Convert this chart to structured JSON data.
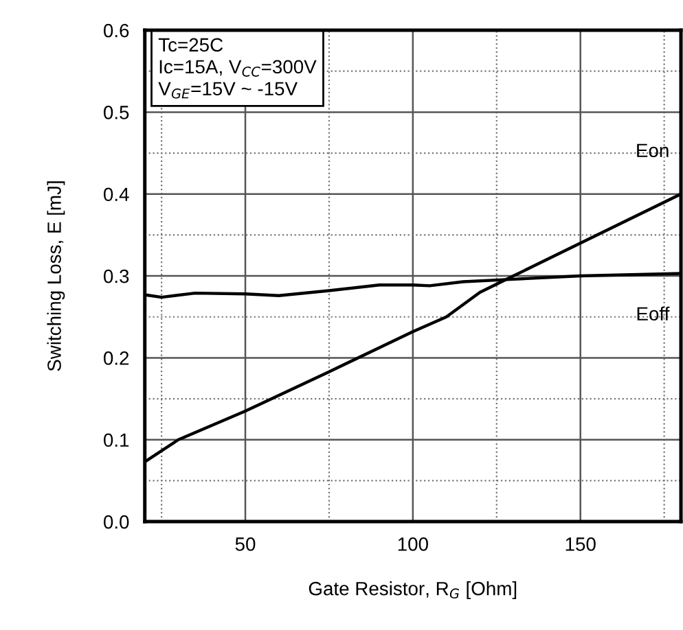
{
  "chart_data": {
    "type": "line",
    "xlabel": "Gate Resistor, R$_{G}$ [Ohm]",
    "ylabel": "Switching Loss, E [mJ]",
    "xlim": [
      20,
      180
    ],
    "ylim": [
      0,
      0.6
    ],
    "xticks": [
      {
        "value": 25,
        "label": null
      },
      50,
      {
        "value": 75,
        "label": null
      },
      100,
      {
        "value": 125,
        "label": null
      },
      150,
      {
        "value": 175,
        "label": null
      }
    ],
    "yticks": [
      "0.0",
      {
        "value": 0.05,
        "label": null
      },
      0.1,
      {
        "value": 0.15,
        "label": null
      },
      0.2,
      {
        "value": 0.25,
        "label": null
      },
      0.3,
      {
        "value": 0.35,
        "label": null
      },
      0.4,
      {
        "value": 0.45,
        "label": null
      },
      0.5,
      {
        "value": 0.55,
        "label": null
      },
      0.6
    ],
    "grid": true,
    "line_style": "solid",
    "marker": "none",
    "annotations": [
      "Tc=25C\nIc=15A, V$_{CC}$=300V\nV$_{GE}$=15V ~ -15V"
    ],
    "series": [
      {
        "name": "Eon",
        "color": "#000000",
        "x": [
          20,
          30,
          50,
          75,
          100,
          110,
          120,
          130,
          150,
          180
        ],
        "values": [
          0.073,
          0.1,
          0.135,
          0.183,
          0.232,
          0.25,
          0.28,
          0.3,
          0.34,
          0.4
        ]
      },
      {
        "name": "Eoff",
        "color": "#000000",
        "x": [
          20,
          25,
          35,
          50,
          60,
          75,
          90,
          100,
          105,
          115,
          130,
          150,
          180
        ],
        "values": [
          0.277,
          0.274,
          0.279,
          0.278,
          0.276,
          0.282,
          0.289,
          0.289,
          0.288,
          0.293,
          0.296,
          0.3,
          0.303
        ]
      }
    ]
  }
}
